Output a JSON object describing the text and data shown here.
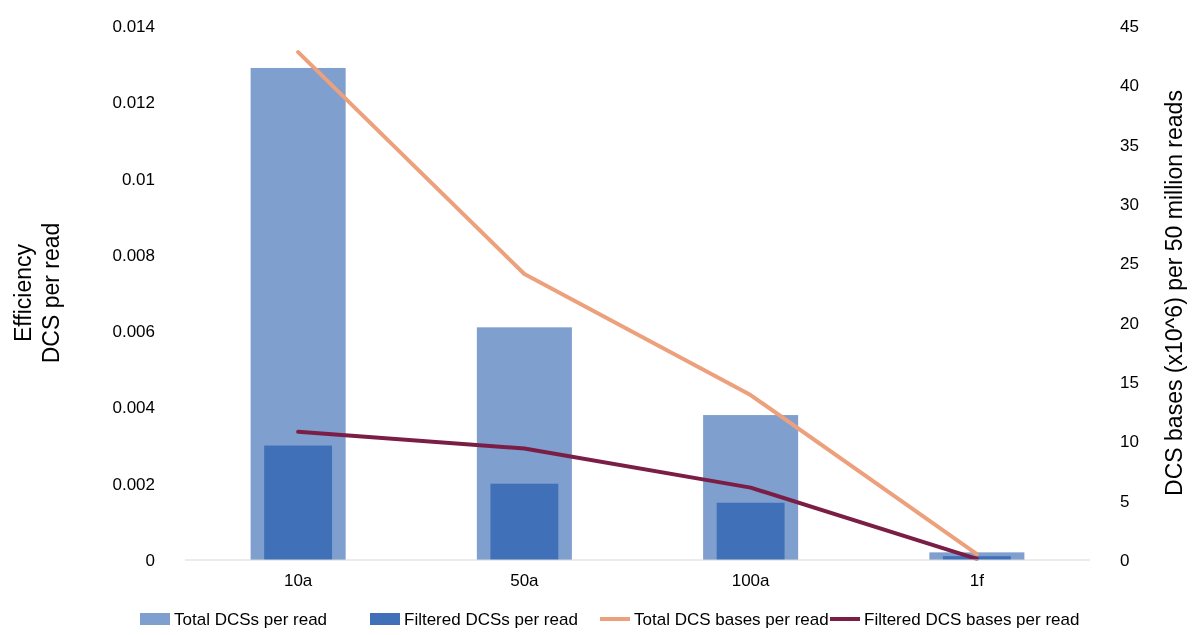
{
  "chart_data": {
    "type": "bar",
    "categories": [
      "10a",
      "50a",
      "100a",
      "1f"
    ],
    "ylabel": "Efficiency\nDCS per read",
    "y2label": "DCS bases (x10^6) per 50 million reads",
    "ylim": [
      0,
      0.014
    ],
    "yticks": [
      0,
      0.002,
      0.004,
      0.006,
      0.008,
      0.01,
      0.012,
      0.014
    ],
    "y2lim": [
      0,
      45
    ],
    "y2ticks": [
      0,
      5,
      10,
      15,
      20,
      25,
      30,
      35,
      40,
      45
    ],
    "series": [
      {
        "name": "Total DCSs per read",
        "color": "#7f9fce",
        "values": [
          0.0129,
          0.0061,
          0.0038,
          0.0002
        ]
      },
      {
        "name": "Filtered DCSs per read",
        "color": "#3f70b8",
        "values": [
          0.003,
          0.002,
          0.0015,
          0.0001
        ]
      },
      {
        "name": "Total DCS bases per read",
        "type": "line",
        "axis": "y2",
        "color": "#eda07c",
        "values": [
          42.8,
          24.1,
          13.9,
          0.5
        ]
      },
      {
        "name": "Filtered DCS bases per read",
        "type": "line",
        "axis": "y2",
        "color": "#7b1e45",
        "values": [
          10.8,
          9.4,
          6.1,
          0.1
        ]
      }
    ],
    "legend": "bottom",
    "grid": false
  }
}
